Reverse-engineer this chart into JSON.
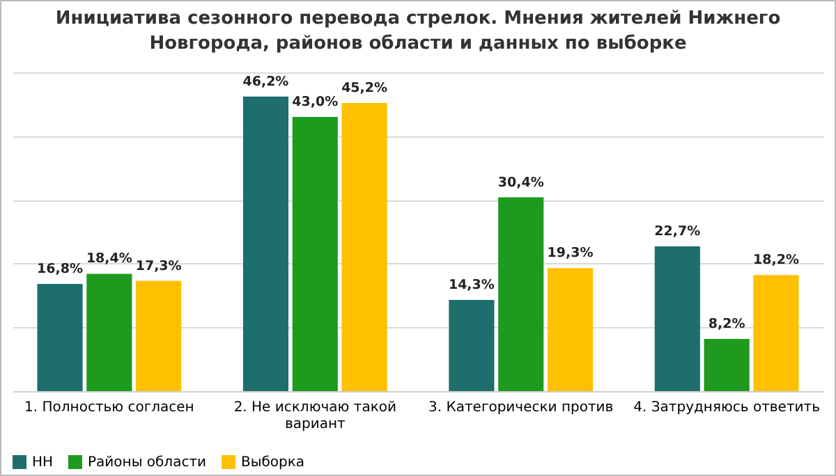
{
  "chart_data": {
    "type": "bar",
    "title": "Инициатива сезонного перевода стрелок. Мнения жителей Нижнего Новгорода, районов области и данных по выборке",
    "categories": [
      "1. Полностью согласен",
      "2. Не исключаю такой вариант",
      "3. Категорически против",
      "4. Затрудняюсь ответить"
    ],
    "series": [
      {
        "name": "НН",
        "color": "#1f6e6e",
        "values": [
          16.8,
          46.2,
          14.3,
          22.7
        ],
        "value_labels": [
          "16,8%",
          "46,2%",
          "14,3%",
          "22,7%"
        ]
      },
      {
        "name": "Районы области",
        "color": "#1e9a1e",
        "values": [
          18.4,
          43.0,
          30.4,
          8.2
        ],
        "value_labels": [
          "18,4%",
          "43,0%",
          "30,4%",
          "8,2%"
        ]
      },
      {
        "name": "Выборка",
        "color": "#ffc000",
        "values": [
          17.3,
          45.2,
          19.3,
          18.2
        ],
        "value_labels": [
          "17,3%",
          "45,2%",
          "19,3%",
          "18,2%"
        ]
      }
    ],
    "ylim": [
      0,
      50
    ],
    "yticks": [
      0,
      10,
      20,
      30,
      40,
      50
    ],
    "grid": "y",
    "tick_labels": "x",
    "legend": "bottom"
  }
}
